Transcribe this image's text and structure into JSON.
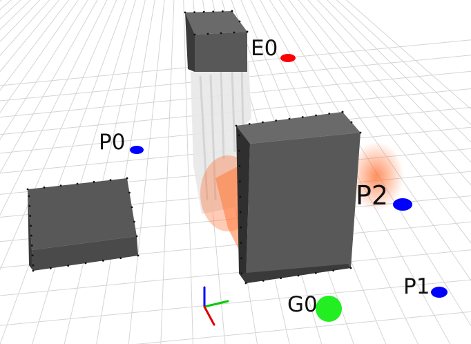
{
  "viewport": {
    "background": "#ffffff",
    "grid_color": "#d4d4d4",
    "box_color": "#585858"
  },
  "obstacles": [
    {
      "id": "tall-tower",
      "color": "#585858"
    },
    {
      "id": "front-block",
      "color": "#585858"
    },
    {
      "id": "left-slab",
      "color": "#585858"
    }
  ],
  "markers": [
    {
      "id": "E0",
      "label": "E0",
      "color": "#ff0000"
    },
    {
      "id": "P0",
      "label": "P0",
      "color": "#0000ff"
    },
    {
      "id": "P1",
      "label": "P1",
      "color": "#0000ff"
    },
    {
      "id": "P2",
      "label": "P2",
      "color": "#0000ff"
    },
    {
      "id": "G0",
      "label": "G0",
      "color": "#22ee22"
    }
  ],
  "axes": {
    "x_color": "#00cc00",
    "y_color": "#0000ff",
    "z_color": "#dd0000"
  }
}
